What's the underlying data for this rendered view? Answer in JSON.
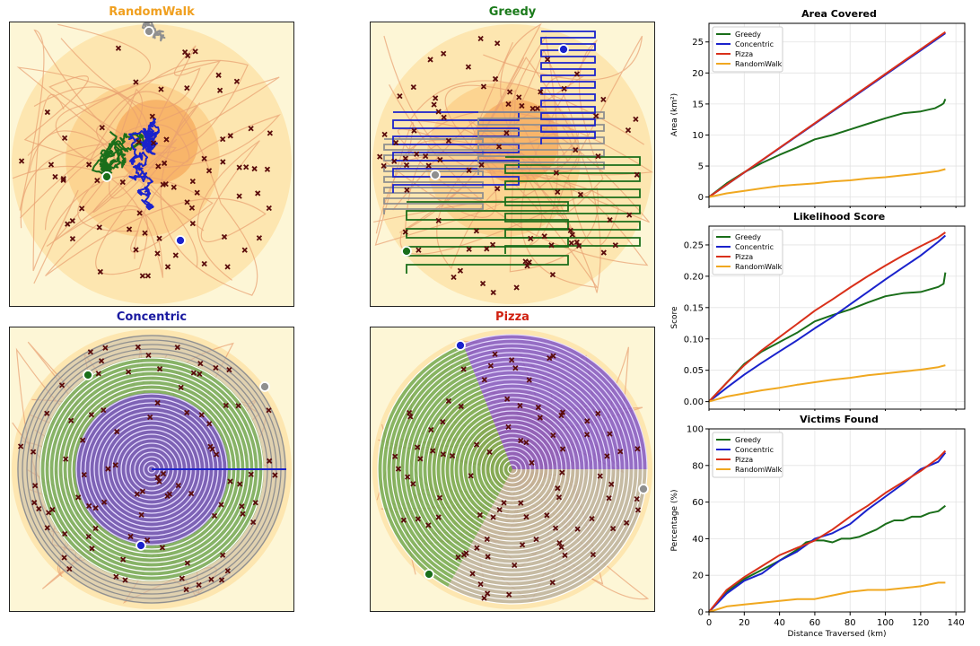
{
  "maps": [
    {
      "key": "randomwalk",
      "title": "RandomWalk",
      "title_color": "#f0a020"
    },
    {
      "key": "greedy",
      "title": "Greedy",
      "title_color": "#1a7a1a"
    },
    {
      "key": "concentric",
      "title": "Concentric",
      "title_color": "#1a1aa0"
    },
    {
      "key": "pizza",
      "title": "Pizza",
      "title_color": "#d02010"
    }
  ],
  "colors": {
    "greedy": "#1a6e1a",
    "concentric": "#1a22cc",
    "pizza": "#d9301a",
    "randomwalk": "#f0a820",
    "gray": "#8f8f8f",
    "victim": "#5a0c0c",
    "heat": "#f5a050"
  },
  "chart_data": [
    {
      "type": "line",
      "title": "Area Covered",
      "xlabel": "",
      "ylabel": "Area (km²)",
      "xlim": [
        0,
        145
      ],
      "ylim": [
        -1.5,
        28
      ],
      "yticks": [
        0,
        5,
        10,
        15,
        20,
        25
      ],
      "xticks": [
        0,
        20,
        40,
        60,
        80,
        100,
        120,
        140
      ],
      "show_xticklabels": false,
      "grid": true,
      "legend": "top-left",
      "series": [
        {
          "name": "Greedy",
          "color": "#1a6e1a",
          "x": [
            0,
            10,
            20,
            30,
            40,
            50,
            60,
            70,
            80,
            90,
            100,
            110,
            120,
            128,
            132,
            133,
            134
          ],
          "y": [
            0,
            2.2,
            4.0,
            5.5,
            6.8,
            8.0,
            9.3,
            10.0,
            10.9,
            11.8,
            12.7,
            13.5,
            13.8,
            14.3,
            14.9,
            15.1,
            15.8
          ]
        },
        {
          "name": "Concentric",
          "color": "#1a22cc",
          "x": [
            0,
            134
          ],
          "y": [
            0,
            26.4
          ]
        },
        {
          "name": "Pizza",
          "color": "#d9301a",
          "x": [
            0,
            134
          ],
          "y": [
            0,
            26.6
          ]
        },
        {
          "name": "RandomWalk",
          "color": "#f0a820",
          "x": [
            0,
            10,
            20,
            30,
            40,
            50,
            60,
            70,
            80,
            90,
            100,
            110,
            120,
            130,
            134
          ],
          "y": [
            0,
            0.6,
            1.0,
            1.4,
            1.8,
            2.0,
            2.2,
            2.5,
            2.7,
            3.0,
            3.2,
            3.5,
            3.8,
            4.2,
            4.5
          ]
        }
      ]
    },
    {
      "type": "line",
      "title": "Likelihood Score",
      "xlabel": "",
      "ylabel": "Score",
      "xlim": [
        0,
        145
      ],
      "ylim": [
        -0.012,
        0.28
      ],
      "yticks": [
        0.0,
        0.05,
        0.1,
        0.15,
        0.2,
        0.25
      ],
      "ytick_labels": [
        "0.00",
        "0.05",
        "0.10",
        "0.15",
        "0.20",
        "0.25"
      ],
      "xticks": [
        0,
        20,
        40,
        60,
        80,
        100,
        120,
        140
      ],
      "show_xticklabels": false,
      "grid": true,
      "legend": "top-left",
      "series": [
        {
          "name": "Greedy",
          "color": "#1a6e1a",
          "x": [
            0,
            10,
            20,
            30,
            40,
            50,
            60,
            70,
            80,
            90,
            100,
            110,
            120,
            130,
            133,
            134
          ],
          "y": [
            0,
            0.03,
            0.06,
            0.08,
            0.095,
            0.11,
            0.128,
            0.138,
            0.147,
            0.158,
            0.168,
            0.173,
            0.175,
            0.183,
            0.188,
            0.206
          ]
        },
        {
          "name": "Concentric",
          "color": "#1a22cc",
          "x": [
            0,
            10,
            20,
            30,
            40,
            50,
            60,
            70,
            80,
            90,
            100,
            110,
            120,
            130,
            134
          ],
          "y": [
            0,
            0.022,
            0.043,
            0.062,
            0.08,
            0.098,
            0.117,
            0.135,
            0.155,
            0.175,
            0.195,
            0.214,
            0.233,
            0.255,
            0.265
          ]
        },
        {
          "name": "Pizza",
          "color": "#d9301a",
          "x": [
            0,
            10,
            20,
            30,
            40,
            50,
            60,
            70,
            80,
            90,
            100,
            110,
            120,
            130,
            134
          ],
          "y": [
            0,
            0.03,
            0.058,
            0.082,
            0.103,
            0.124,
            0.145,
            0.163,
            0.182,
            0.2,
            0.217,
            0.233,
            0.248,
            0.262,
            0.27
          ]
        },
        {
          "name": "RandomWalk",
          "color": "#f0a820",
          "x": [
            0,
            10,
            20,
            30,
            40,
            50,
            60,
            70,
            80,
            90,
            100,
            110,
            120,
            130,
            134
          ],
          "y": [
            0,
            0.008,
            0.013,
            0.018,
            0.022,
            0.027,
            0.031,
            0.035,
            0.038,
            0.042,
            0.045,
            0.048,
            0.051,
            0.055,
            0.058
          ]
        }
      ]
    },
    {
      "type": "line",
      "title": "Victims Found",
      "xlabel": "Distance Traversed (km)",
      "ylabel": "Percentage (%)",
      "xlim": [
        0,
        145
      ],
      "ylim": [
        0,
        100
      ],
      "yticks": [
        0,
        20,
        40,
        60,
        80,
        100
      ],
      "xticks": [
        0,
        20,
        40,
        60,
        80,
        100,
        120,
        140
      ],
      "show_xticklabels": true,
      "grid": true,
      "legend": "top-left",
      "series": [
        {
          "name": "Greedy",
          "color": "#1a6e1a",
          "x": [
            0,
            10,
            20,
            30,
            40,
            50,
            55,
            60,
            65,
            70,
            75,
            80,
            85,
            90,
            95,
            100,
            105,
            110,
            115,
            120,
            125,
            130,
            134
          ],
          "y": [
            0,
            11,
            18,
            23,
            28,
            34,
            38,
            39,
            39,
            38,
            40,
            40,
            41,
            43,
            45,
            48,
            50,
            50,
            52,
            52,
            54,
            55,
            58
          ]
        },
        {
          "name": "Concentric",
          "color": "#1a22cc",
          "x": [
            0,
            10,
            20,
            30,
            40,
            50,
            60,
            70,
            80,
            90,
            100,
            110,
            120,
            130,
            134
          ],
          "y": [
            0,
            10,
            17,
            21,
            28,
            33,
            40,
            43,
            48,
            56,
            63,
            70,
            78,
            82,
            87
          ]
        },
        {
          "name": "Pizza",
          "color": "#d9301a",
          "x": [
            0,
            10,
            20,
            30,
            40,
            50,
            60,
            70,
            80,
            90,
            100,
            110,
            120,
            130,
            134
          ],
          "y": [
            0,
            12,
            19,
            25,
            31,
            35,
            39,
            45,
            52,
            58,
            65,
            71,
            77,
            84,
            88
          ]
        },
        {
          "name": "RandomWalk",
          "color": "#f0a820",
          "x": [
            0,
            10,
            20,
            30,
            40,
            50,
            60,
            70,
            80,
            90,
            100,
            110,
            120,
            130,
            134
          ],
          "y": [
            0,
            3,
            4,
            5,
            6,
            7,
            7,
            9,
            11,
            12,
            12,
            13,
            14,
            16,
            16
          ]
        }
      ]
    }
  ]
}
